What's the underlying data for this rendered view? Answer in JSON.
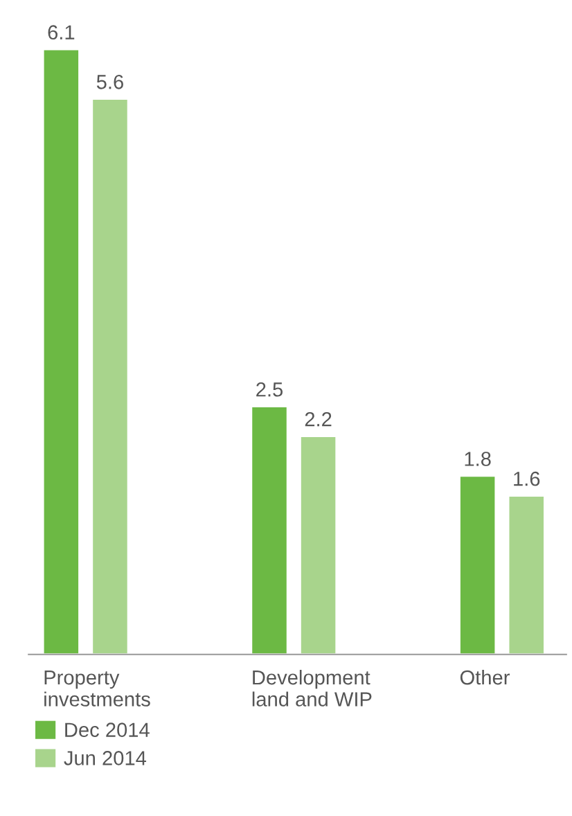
{
  "chart_data": {
    "type": "bar",
    "categories": [
      "Property investments",
      "Development land and WIP",
      "Other"
    ],
    "series": [
      {
        "name": "Dec 2014",
        "color": "#6cb944",
        "values": [
          6.1,
          2.5,
          1.8
        ]
      },
      {
        "name": "Jun 2014",
        "color": "#a8d48c",
        "values": [
          5.6,
          2.2,
          1.6
        ]
      }
    ],
    "data_labels": true,
    "legend": "bottom left",
    "grid": false,
    "tick_labels": "x"
  }
}
